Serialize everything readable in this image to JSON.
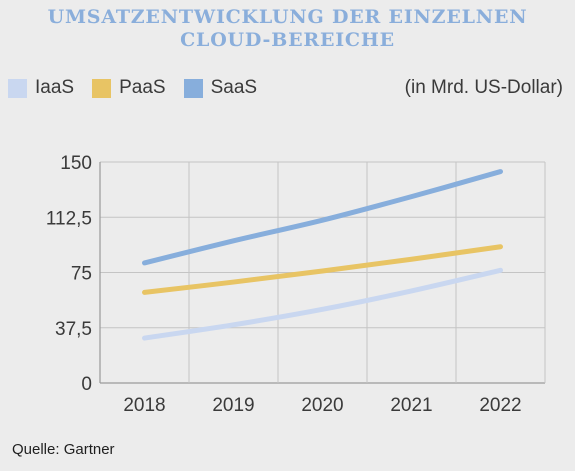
{
  "chart_data": {
    "type": "line",
    "title_lines": [
      "UMSATZENTWICKLUNG DER EINZELNEN",
      "CLOUD-BEREICHE"
    ],
    "unit_note": "(in Mrd. US-Dollar)",
    "source": "Quelle: Gartner",
    "x": [
      "2018",
      "2019",
      "2020",
      "2021",
      "2022"
    ],
    "ylim": [
      0,
      150
    ],
    "yticks": [
      0,
      37.5,
      75,
      112.5,
      150
    ],
    "ytick_labels": [
      "0",
      "37,5",
      "75",
      "112,5",
      "150"
    ],
    "grid": true,
    "legend_position": "top-left",
    "series": [
      {
        "name": "IaaS",
        "color": "#c9d7f0",
        "values": [
          30.5,
          39.5,
          50,
          62.5,
          76.5
        ]
      },
      {
        "name": "PaaS",
        "color": "#e8c464",
        "values": [
          61.5,
          68.5,
          76,
          84,
          92.5
        ]
      },
      {
        "name": "SaaS",
        "color": "#87aedc",
        "values": [
          81.5,
          96.5,
          110.5,
          126.5,
          143.5
        ]
      }
    ]
  }
}
